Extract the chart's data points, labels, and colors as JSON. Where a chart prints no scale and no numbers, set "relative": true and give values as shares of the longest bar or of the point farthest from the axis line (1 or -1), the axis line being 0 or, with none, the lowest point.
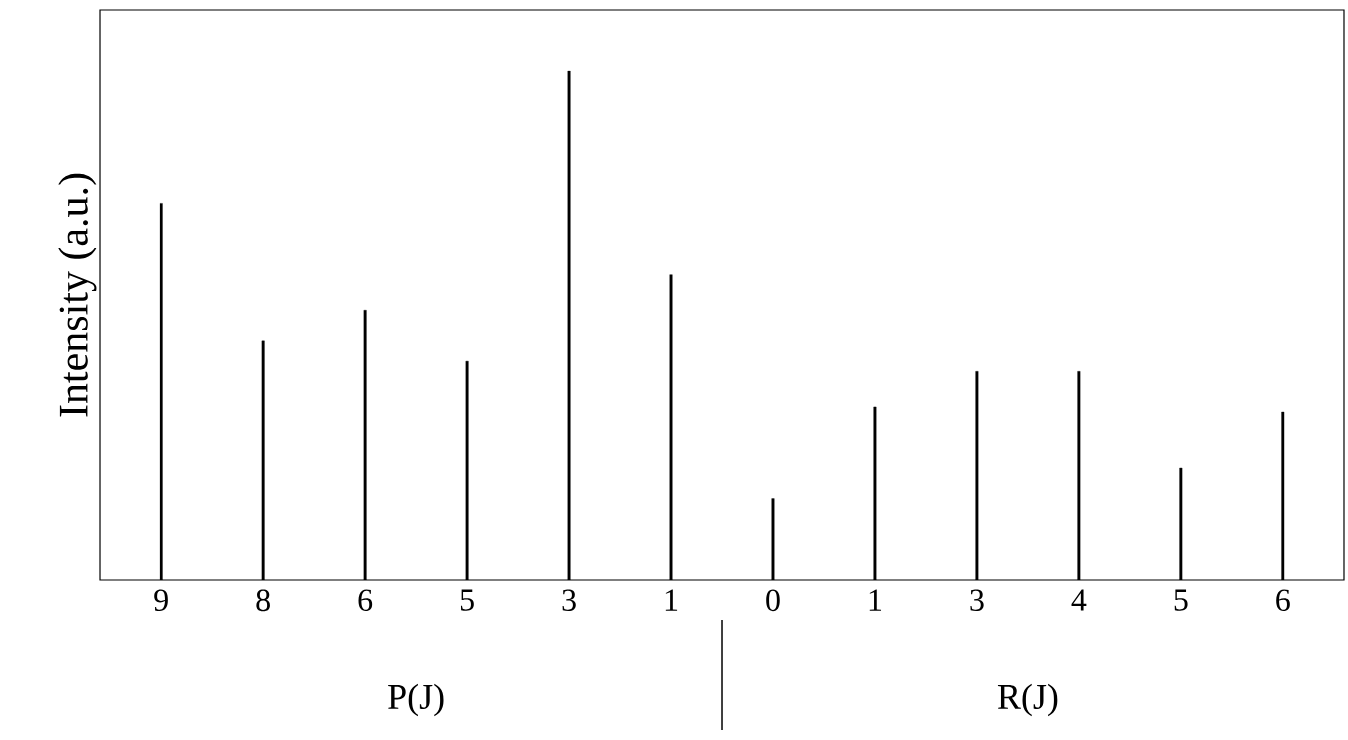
{
  "chart_data": {
    "type": "bar",
    "relative": true,
    "ylabel": "Intensity (a.u.)",
    "categories": [
      "9",
      "8",
      "6",
      "5",
      "3",
      "1",
      "0",
      "1",
      "3",
      "4",
      "5",
      "6"
    ],
    "values": [
      0.74,
      0.47,
      0.53,
      0.43,
      1,
      0.6,
      0.16,
      0.34,
      0.41,
      0.41,
      0.22,
      0.33
    ],
    "color": "#000000",
    "annotations": [
      "P(J)",
      "R(J)"
    ]
  }
}
